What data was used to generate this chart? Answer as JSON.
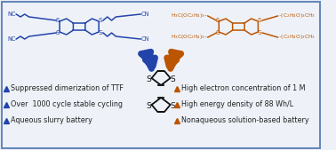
{
  "background_color": "#eef2f8",
  "border_color": "#6688bb",
  "blue_color": "#2244aa",
  "orange_color": "#bb5500",
  "black_color": "#111111",
  "left_bullets": [
    "Suppressed dimerization of TTF",
    "Over  1000 cycle stable cycling",
    "Aqueous slurry battery"
  ],
  "right_bullets": [
    "High electron concentration of 1 M",
    "High energy density of 88 Wh/L",
    "Nonaqueous solution-based battery"
  ],
  "font_size_bullet": 5.8,
  "font_size_mol": 5.0,
  "font_size_mol_small": 4.2
}
